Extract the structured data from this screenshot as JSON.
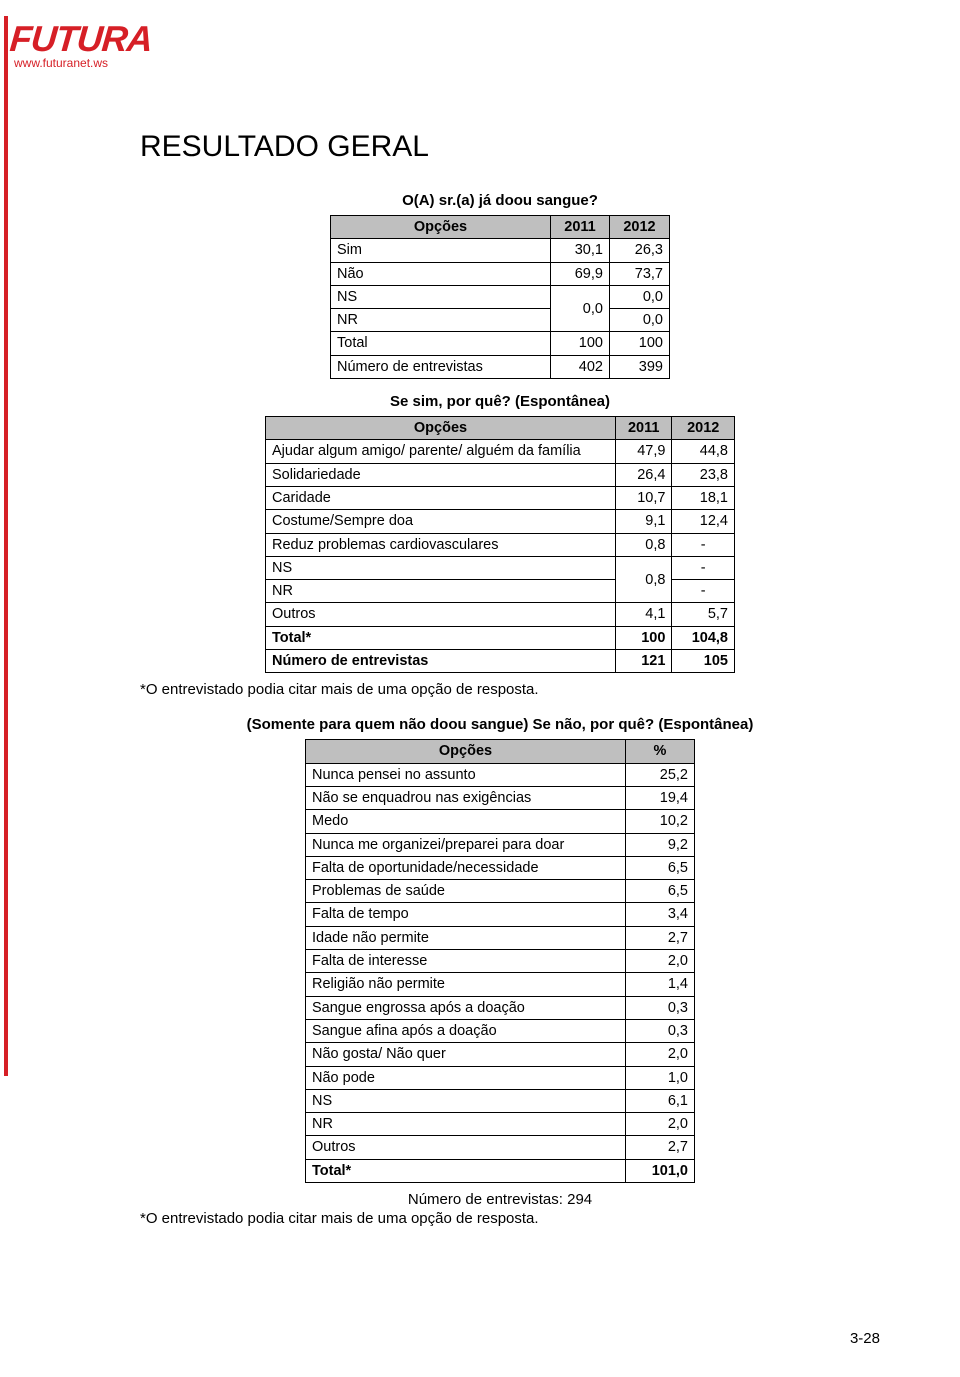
{
  "logo": {
    "brand": "FUTURA",
    "url": "www.futuranet.ws"
  },
  "page_title": "RESULTADO GERAL",
  "page_number": "3-28",
  "q1": {
    "question": "O(A) sr.(a) já doou sangue?",
    "header": [
      "Opções",
      "2011",
      "2012"
    ],
    "rows": [
      {
        "label": "Sim",
        "v2011": "30,1",
        "v2012": "26,3"
      },
      {
        "label": "Não",
        "v2011": "69,9",
        "v2012": "73,7"
      }
    ],
    "ns_label": "NS",
    "nr_label": "NR",
    "ns_nr_2011": "0,0",
    "ns_2012": "0,0",
    "nr_2012": "0,0",
    "total_label": "Total",
    "total_2011": "100",
    "total_2012": "100",
    "n_label": "Número de entrevistas",
    "n_2011": "402",
    "n_2012": "399"
  },
  "q2": {
    "question": "Se sim, por quê? (Espontânea)",
    "header": [
      "Opções",
      "2011",
      "2012"
    ],
    "rows": [
      {
        "label": "Ajudar algum amigo/ parente/ alguém da família",
        "v2011": "47,9",
        "v2012": "44,8"
      },
      {
        "label": "Solidariedade",
        "v2011": "26,4",
        "v2012": "23,8"
      },
      {
        "label": "Caridade",
        "v2011": "10,7",
        "v2012": "18,1"
      },
      {
        "label": "Costume/Sempre doa",
        "v2011": "9,1",
        "v2012": "12,4"
      },
      {
        "label": "Reduz problemas cardiovasculares",
        "v2011": "0,8",
        "v2012": "-"
      }
    ],
    "ns_label": "NS",
    "nr_label": "NR",
    "ns_nr_2011": "0,8",
    "ns_2012": "-",
    "nr_2012": "-",
    "outros_label": "Outros",
    "outros_2011": "4,1",
    "outros_2012": "5,7",
    "total_label": "Total*",
    "total_2011": "100",
    "total_2012": "104,8",
    "n_label": "Número de entrevistas",
    "n_2011": "121",
    "n_2012": "105",
    "footnote": "*O entrevistado podia citar mais de uma opção de resposta."
  },
  "q3": {
    "question": "(Somente para quem não doou sangue) Se não, por quê? (Espontânea)",
    "header": [
      "Opções",
      "%"
    ],
    "rows": [
      {
        "label": "Nunca pensei no assunto",
        "v": "25,2"
      },
      {
        "label": "Não se enquadrou nas exigências",
        "v": "19,4"
      },
      {
        "label": "Medo",
        "v": "10,2"
      },
      {
        "label": "Nunca me organizei/preparei para doar",
        "v": "9,2"
      },
      {
        "label": "Falta de oportunidade/necessidade",
        "v": "6,5"
      },
      {
        "label": "Problemas de saúde",
        "v": "6,5"
      },
      {
        "label": "Falta de tempo",
        "v": "3,4"
      },
      {
        "label": "Idade não permite",
        "v": "2,7"
      },
      {
        "label": "Falta de interesse",
        "v": "2,0"
      },
      {
        "label": "Religião não permite",
        "v": "1,4"
      },
      {
        "label": "Sangue engrossa após a doação",
        "v": "0,3"
      },
      {
        "label": "Sangue afina após a doação",
        "v": "0,3"
      },
      {
        "label": "Não gosta/ Não quer",
        "v": "2,0"
      },
      {
        "label": "Não pode",
        "v": "1,0"
      },
      {
        "label": "NS",
        "v": "6,1"
      },
      {
        "label": "NR",
        "v": "2,0"
      },
      {
        "label": "Outros",
        "v": "2,7"
      }
    ],
    "total_label": "Total*",
    "total_v": "101,0",
    "n_note": "Número de entrevistas: 294",
    "footnote": "*O entrevistado podia citar mais de uma opção de resposta."
  }
}
